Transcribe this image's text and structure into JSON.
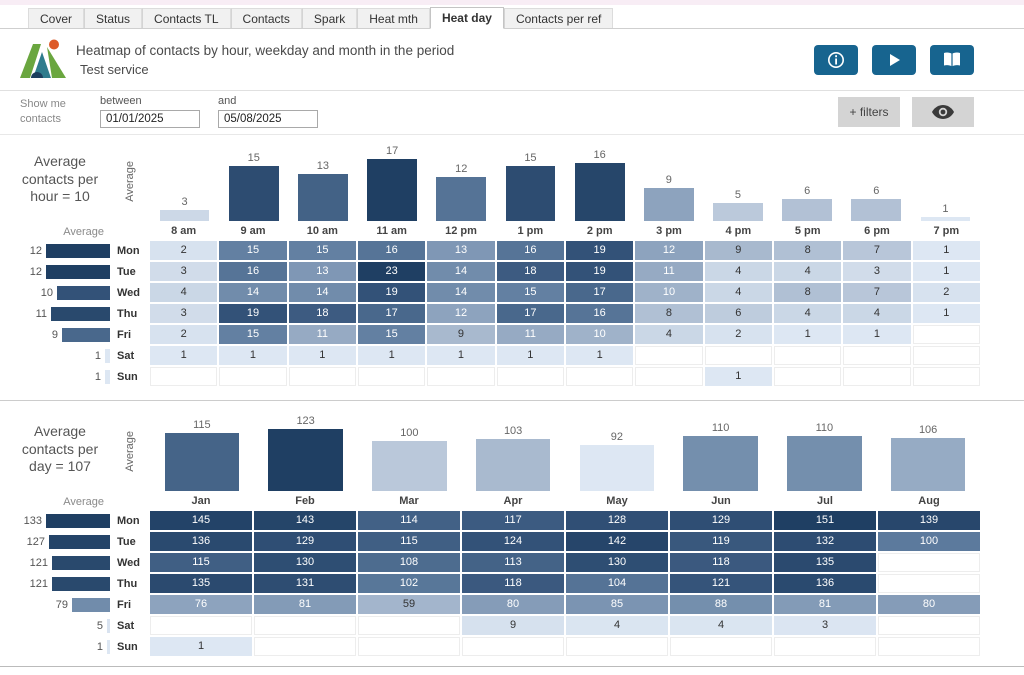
{
  "tabs": {
    "items": [
      "Cover",
      "Status",
      "Contacts TL",
      "Contacts",
      "Spark",
      "Heat mth",
      "Heat day",
      "Contacts per ref"
    ],
    "active_index": 6
  },
  "header": {
    "title": "Heatmap of contacts by hour, weekday and month in the period",
    "subtitle": "Test service",
    "buttons": [
      "info",
      "play",
      "book"
    ]
  },
  "filters": {
    "show_me_line1": "Show me",
    "show_me_line2": "contacts",
    "between_label": "between",
    "and_label": "and",
    "from": "01/01/2025",
    "to": "05/08/2025",
    "filters_button": "+ filters"
  },
  "colors": {
    "accent": "#17648f",
    "heat_low": "#dde7f3",
    "heat_mid": "#8da3be",
    "heat_high": "#1f3f63",
    "gray_button": "#d4d4d4",
    "top_strip": "#f8edf5"
  },
  "chart_data": [
    {
      "type": "heatmap",
      "title": "Average contacts per hour = 10",
      "col_axis_label": "Average",
      "row_axis_label": "Average",
      "columns": [
        "8 am",
        "9 am",
        "10 am",
        "11 am",
        "12 pm",
        "1 pm",
        "2 pm",
        "3 pm",
        "4 pm",
        "5 pm",
        "6 pm",
        "7 pm"
      ],
      "rows": [
        "Mon",
        "Tue",
        "Wed",
        "Thu",
        "Fri",
        "Sat",
        "Sun"
      ],
      "col_averages": [
        3,
        15,
        13,
        17,
        12,
        15,
        16,
        9,
        5,
        6,
        6,
        1
      ],
      "row_averages": [
        12,
        12,
        10,
        11,
        9,
        1,
        1
      ],
      "values": [
        [
          2,
          15,
          15,
          16,
          13,
          16,
          19,
          12,
          9,
          8,
          7,
          1
        ],
        [
          3,
          16,
          13,
          23,
          14,
          18,
          19,
          11,
          4,
          4,
          3,
          1
        ],
        [
          4,
          14,
          14,
          19,
          14,
          15,
          17,
          10,
          4,
          8,
          7,
          2
        ],
        [
          3,
          19,
          18,
          17,
          12,
          17,
          16,
          8,
          6,
          4,
          4,
          1
        ],
        [
          2,
          15,
          11,
          15,
          9,
          11,
          10,
          4,
          2,
          1,
          1,
          null
        ],
        [
          1,
          1,
          1,
          1,
          1,
          1,
          1,
          null,
          null,
          null,
          null,
          null
        ],
        [
          null,
          null,
          null,
          null,
          null,
          null,
          null,
          null,
          1,
          null,
          null,
          null
        ]
      ]
    },
    {
      "type": "heatmap",
      "title": "Average contacts per day = 107",
      "col_axis_label": "Average",
      "row_axis_label": "Average",
      "columns": [
        "Jan",
        "Feb",
        "Mar",
        "Apr",
        "May",
        "Jun",
        "Jul",
        "Aug"
      ],
      "rows": [
        "Mon",
        "Tue",
        "Wed",
        "Thu",
        "Fri",
        "Sat",
        "Sun"
      ],
      "col_averages": [
        115,
        123,
        100,
        103,
        92,
        110,
        110,
        106
      ],
      "row_averages": [
        133,
        127,
        121,
        121,
        79,
        5,
        1
      ],
      "values": [
        [
          145,
          143,
          114,
          117,
          128,
          129,
          151,
          139
        ],
        [
          136,
          129,
          115,
          124,
          142,
          119,
          132,
          100
        ],
        [
          115,
          130,
          108,
          113,
          130,
          118,
          135,
          null
        ],
        [
          135,
          131,
          102,
          118,
          104,
          121,
          136,
          null
        ],
        [
          76,
          81,
          59,
          80,
          85,
          88,
          81,
          80
        ],
        [
          null,
          null,
          null,
          9,
          4,
          4,
          3,
          null
        ],
        [
          1,
          null,
          null,
          null,
          null,
          null,
          null,
          null
        ]
      ]
    }
  ]
}
